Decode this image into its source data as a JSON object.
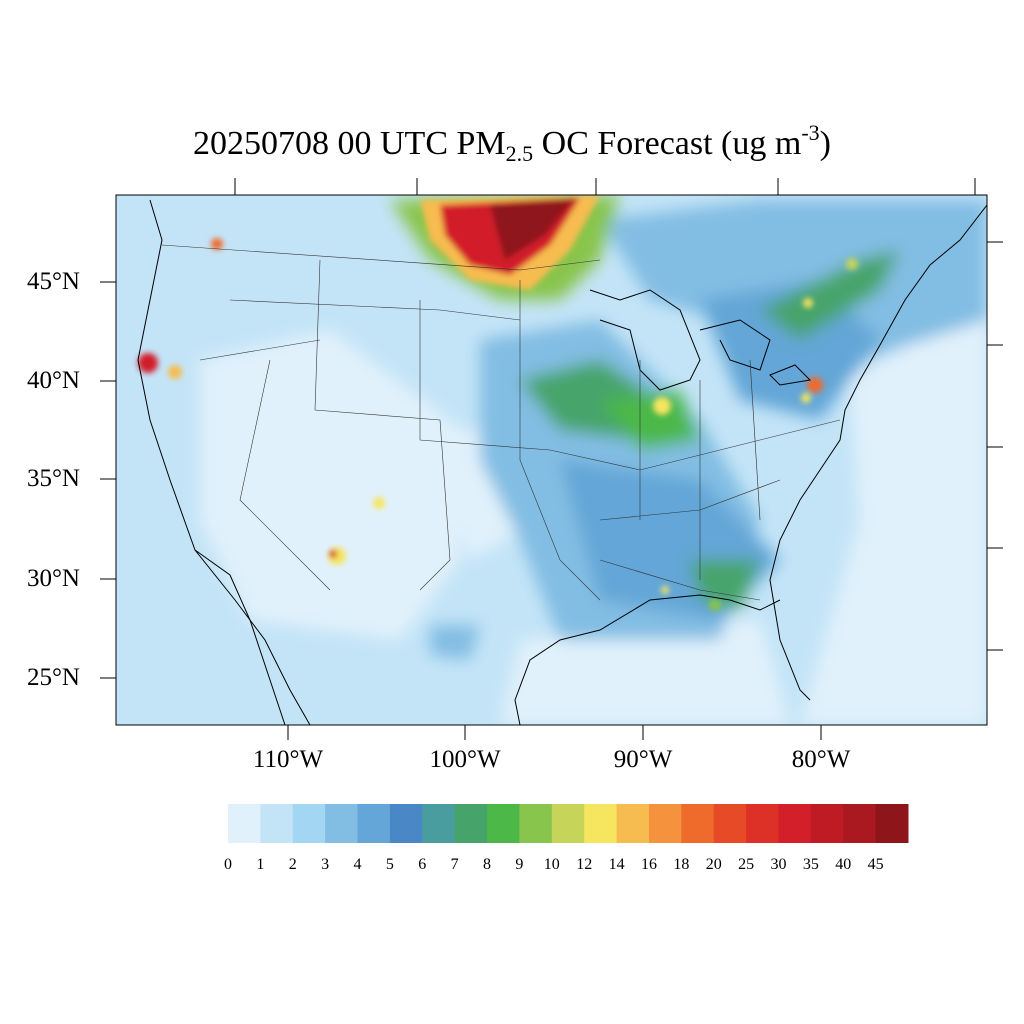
{
  "title": {
    "main": "20250708 00 UTC PM",
    "sub": "2.5",
    "rest": " OC Forecast (ug m",
    "sup": "-3",
    "close": ")"
  },
  "lat_labels": [
    "45°N",
    "40°N",
    "35°N",
    "30°N",
    "25°N"
  ],
  "lon_labels": [
    "110°W",
    "100°W",
    "90°W",
    "80°W"
  ],
  "colorbar": {
    "colors": [
      "#e1f1fb",
      "#c3e4f7",
      "#a3d6f2",
      "#82bde3",
      "#64a6d7",
      "#4a87c6",
      "#4a9d9f",
      "#46a46a",
      "#4bb848",
      "#88c54c",
      "#c6d55a",
      "#f6e55e",
      "#f7bc50",
      "#f4923d",
      "#ef6b2c",
      "#e74a27",
      "#dd3127",
      "#d21f2a",
      "#bf1b25",
      "#aa1820",
      "#8e161b"
    ],
    "ticks": [
      "0",
      "1",
      "2",
      "3",
      "4",
      "5",
      "6",
      "7",
      "8",
      "9",
      "10",
      "12",
      "14",
      "16",
      "18",
      "20",
      "25",
      "30",
      "35",
      "40",
      "45"
    ]
  }
}
